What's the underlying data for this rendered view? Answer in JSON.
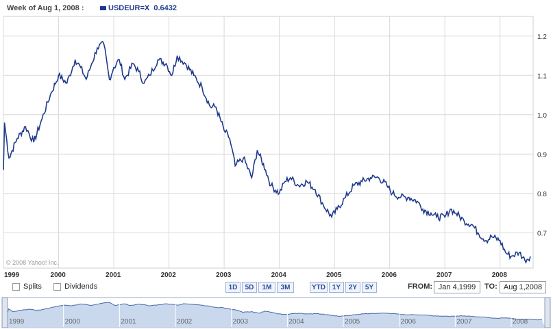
{
  "header": {
    "week_label": "Week of Aug 1, 2008 :",
    "series_label": "USDEUR=X",
    "series_value": "0.6432"
  },
  "copyright": "© 2008 Yahoo! Inc.",
  "controls": {
    "splits_label": "Splits",
    "dividends_label": "Dividends",
    "ranges": [
      "1D",
      "5D",
      "1M",
      "3M",
      "YTD",
      "1Y",
      "2Y",
      "5Y"
    ],
    "from_label": "FROM:",
    "from_value": "Jan 4,1999",
    "to_label": "TO:",
    "to_value": "Aug 1,2008"
  },
  "colors": {
    "line": "#1f3a8a",
    "grid": "#d9d9d9",
    "overview_fill": "#c9d8ec"
  },
  "chart_data": {
    "type": "line",
    "series": [
      {
        "name": "USDEUR=X",
        "x": [
          1999.0,
          1999.02,
          1999.1,
          1999.25,
          1999.4,
          1999.55,
          1999.7,
          1999.85,
          2000.0,
          2000.15,
          2000.3,
          2000.4,
          2000.5,
          2000.6,
          2000.7,
          2000.82,
          2000.92,
          2001.0,
          2001.1,
          2001.2,
          2001.35,
          2001.45,
          2001.55,
          2001.65,
          2001.8,
          2001.95,
          2002.05,
          2002.15,
          2002.3,
          2002.45,
          2002.6,
          2002.75,
          2002.85,
          2003.0,
          2003.1,
          2003.2,
          2003.35,
          2003.5,
          2003.6,
          2003.75,
          2003.85,
          2004.0,
          2004.1,
          2004.2,
          2004.35,
          2004.5,
          2004.65,
          2004.8,
          2004.95,
          2005.05,
          2005.2,
          2005.35,
          2005.5,
          2005.65,
          2005.8,
          2005.95,
          2006.05,
          2006.2,
          2006.35,
          2006.5,
          2006.6,
          2006.75,
          2006.85,
          2007.0,
          2007.1,
          2007.2,
          2007.35,
          2007.5,
          2007.6,
          2007.75,
          2007.85,
          2008.0,
          2008.1,
          2008.2,
          2008.35,
          2008.45,
          2008.55
        ],
        "y": [
          0.86,
          0.98,
          0.89,
          0.94,
          0.97,
          0.93,
          0.99,
          1.05,
          1.1,
          1.08,
          1.14,
          1.12,
          1.09,
          1.13,
          1.17,
          1.18,
          1.09,
          1.12,
          1.14,
          1.09,
          1.13,
          1.11,
          1.08,
          1.1,
          1.14,
          1.13,
          1.1,
          1.15,
          1.13,
          1.1,
          1.07,
          1.02,
          1.02,
          0.96,
          0.94,
          0.87,
          0.89,
          0.84,
          0.91,
          0.86,
          0.82,
          0.8,
          0.83,
          0.84,
          0.82,
          0.83,
          0.81,
          0.77,
          0.74,
          0.76,
          0.79,
          0.82,
          0.83,
          0.84,
          0.84,
          0.82,
          0.8,
          0.79,
          0.79,
          0.78,
          0.76,
          0.75,
          0.74,
          0.74,
          0.76,
          0.75,
          0.73,
          0.72,
          0.7,
          0.68,
          0.69,
          0.68,
          0.65,
          0.64,
          0.65,
          0.63,
          0.64
        ]
      }
    ],
    "x_ticks": [
      "1999",
      "2000",
      "2001",
      "2002",
      "2003",
      "2004",
      "2005",
      "2006",
      "2007",
      "2008"
    ],
    "y_ticks": [
      "0.7",
      "0.8",
      "0.9",
      "1.0",
      "1.1",
      "1.2"
    ],
    "xlim": [
      1999.0,
      2008.6
    ],
    "ylim": [
      0.61,
      1.25
    ],
    "grid": true,
    "y_axis_side": "right"
  }
}
